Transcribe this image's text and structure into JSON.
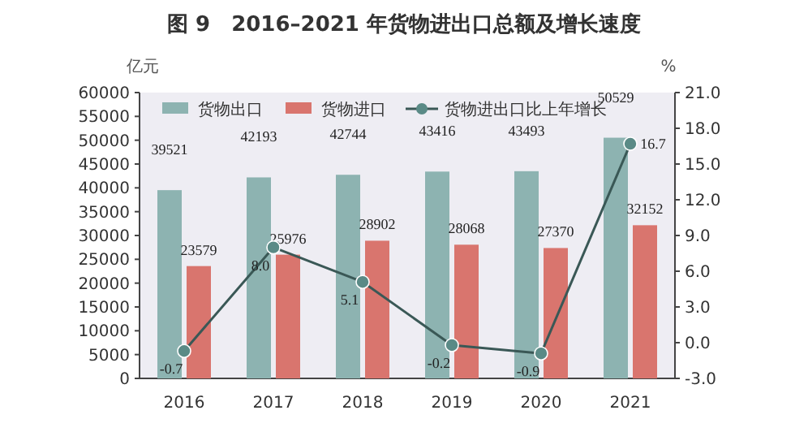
{
  "chart_data": {
    "type": "bar",
    "title": "图 9　2016–2021 年货物进出口总额及增长速度",
    "ylabel": "亿元",
    "y2label": "%",
    "categories": [
      "2016",
      "2017",
      "2018",
      "2019",
      "2020",
      "2021"
    ],
    "series": [
      {
        "name": "货物出口",
        "color": "#8db3b1",
        "values": [
          39521,
          42193,
          42744,
          43416,
          43493,
          50529
        ]
      },
      {
        "name": "货物进口",
        "color": "#d9756e",
        "values": [
          23579,
          25976,
          28902,
          28068,
          27370,
          32152
        ]
      },
      {
        "name": "货物进出口比上年增长",
        "type": "line",
        "axis": "y2",
        "color": "#3a5856",
        "marker": "circle",
        "values": [
          -0.7,
          8.0,
          5.1,
          -0.2,
          -0.9,
          16.7
        ],
        "value_labels": [
          "-0.7",
          "8.0",
          "5.1",
          "-0.2",
          "-0.9",
          "16.7"
        ]
      }
    ],
    "ylim": [
      0,
      60000
    ],
    "yticks": [
      0,
      5000,
      10000,
      15000,
      20000,
      25000,
      30000,
      35000,
      40000,
      45000,
      50000,
      55000,
      60000
    ],
    "y2lim": [
      -3,
      21
    ],
    "y2ticks": [
      {
        "value": -3,
        "label": "-3.0"
      },
      {
        "value": 0,
        "label": "0.0"
      },
      {
        "value": 3,
        "label": "3.0"
      },
      {
        "value": 6,
        "label": "6.0"
      },
      {
        "value": 9,
        "label": "9.0"
      },
      {
        "value": 12,
        "label": "12.0"
      },
      {
        "value": 15,
        "label": "15.0"
      },
      {
        "value": 18,
        "label": "18.0"
      },
      {
        "value": 21,
        "label": "21.0"
      }
    ],
    "data_labels": true,
    "grid": false,
    "legend": "top left"
  }
}
